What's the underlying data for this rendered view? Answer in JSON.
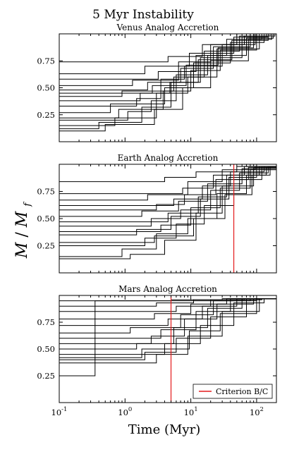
{
  "figure": {
    "title": "5 Myr Instability",
    "ylabel": "M / M_f",
    "xlabel": "Time (Myr)"
  },
  "chart_data": [
    {
      "type": "line",
      "title": "Venus Analog Accretion",
      "xscale": "log",
      "xlim": [
        0.1,
        200
      ],
      "ylim": [
        0.0,
        1.0
      ],
      "yticks": [
        "0.25",
        "0.50",
        "0.75"
      ],
      "series_style": "step",
      "series_color": "#000000",
      "series": [
        {
          "steps": [
            [
              0.1,
              0.12
            ],
            [
              0.4,
              0.18
            ],
            [
              1.8,
              0.32
            ],
            [
              5,
              0.55
            ],
            [
              14,
              0.78
            ],
            [
              60,
              0.97
            ],
            [
              150,
              1.0
            ]
          ]
        },
        {
          "steps": [
            [
              0.1,
              0.15
            ],
            [
              0.7,
              0.22
            ],
            [
              3,
              0.45
            ],
            [
              9,
              0.6
            ],
            [
              25,
              0.86
            ],
            [
              110,
              1.0
            ]
          ]
        },
        {
          "steps": [
            [
              0.1,
              0.2
            ],
            [
              1.1,
              0.28
            ],
            [
              2.5,
              0.38
            ],
            [
              6,
              0.62
            ],
            [
              18,
              0.8
            ],
            [
              70,
              0.96
            ],
            [
              180,
              1.0
            ]
          ]
        },
        {
          "steps": [
            [
              0.1,
              0.27
            ],
            [
              0.6,
              0.35
            ],
            [
              4,
              0.5
            ],
            [
              11,
              0.73
            ],
            [
              40,
              0.92
            ],
            [
              130,
              1.0
            ]
          ]
        },
        {
          "steps": [
            [
              0.1,
              0.33
            ],
            [
              1.5,
              0.4
            ],
            [
              3.5,
              0.58
            ],
            [
              8,
              0.7
            ],
            [
              30,
              0.9
            ],
            [
              95,
              1.0
            ]
          ]
        },
        {
          "steps": [
            [
              0.1,
              0.42
            ],
            [
              0.9,
              0.47
            ],
            [
              5.5,
              0.6
            ],
            [
              16,
              0.84
            ],
            [
              55,
              0.98
            ],
            [
              160,
              1.0
            ]
          ]
        },
        {
          "steps": [
            [
              0.1,
              0.48
            ],
            [
              2.2,
              0.55
            ],
            [
              7,
              0.68
            ],
            [
              22,
              0.88
            ],
            [
              80,
              1.0
            ]
          ]
        },
        {
          "steps": [
            [
              0.1,
              0.52
            ],
            [
              1.3,
              0.57
            ],
            [
              6.5,
              0.74
            ],
            [
              20,
              0.9
            ],
            [
              65,
              0.98
            ],
            [
              190,
              1.0
            ]
          ]
        },
        {
          "steps": [
            [
              0.1,
              0.58
            ],
            [
              3.2,
              0.65
            ],
            [
              12,
              0.8
            ],
            [
              35,
              0.95
            ],
            [
              120,
              1.0
            ]
          ]
        },
        {
          "steps": [
            [
              0.1,
              0.63
            ],
            [
              2,
              0.7
            ],
            [
              9.5,
              0.82
            ],
            [
              45,
              0.97
            ],
            [
              140,
              1.0
            ]
          ]
        },
        {
          "steps": [
            [
              0.1,
              0.74
            ],
            [
              4.5,
              0.79
            ],
            [
              15,
              0.9
            ],
            [
              50,
              1.0
            ]
          ]
        },
        {
          "steps": [
            [
              0.1,
              0.1
            ],
            [
              0.5,
              0.16
            ],
            [
              2.8,
              0.3
            ],
            [
              7.5,
              0.5
            ],
            [
              20,
              0.75
            ],
            [
              75,
              0.95
            ],
            [
              170,
              1.0
            ]
          ]
        },
        {
          "steps": [
            [
              0.1,
              0.22
            ],
            [
              0.8,
              0.3
            ],
            [
              3.8,
              0.47
            ],
            [
              10,
              0.66
            ],
            [
              28,
              0.85
            ],
            [
              100,
              1.0
            ]
          ]
        },
        {
          "steps": [
            [
              0.1,
              0.38
            ],
            [
              1.7,
              0.45
            ],
            [
              4.8,
              0.55
            ],
            [
              13,
              0.76
            ],
            [
              42,
              0.94
            ],
            [
              150,
              1.0
            ]
          ]
        },
        {
          "steps": [
            [
              0.1,
              0.45
            ],
            [
              2.6,
              0.52
            ],
            [
              8.5,
              0.71
            ],
            [
              26,
              0.87
            ],
            [
              90,
              1.0
            ]
          ]
        }
      ]
    },
    {
      "type": "line",
      "title": "Earth Analog Accretion",
      "xscale": "log",
      "xlim": [
        0.1,
        200
      ],
      "ylim": [
        0.0,
        1.0
      ],
      "yticks": [
        "0.25",
        "0.50",
        "0.75"
      ],
      "series_style": "step",
      "series_color": "#000000",
      "vline": {
        "x": 45,
        "color": "#e41a1c"
      },
      "series": [
        {
          "steps": [
            [
              0.1,
              0.13
            ],
            [
              1.2,
              0.17
            ],
            [
              4,
              0.3
            ],
            [
              12,
              0.55
            ],
            [
              30,
              0.8
            ],
            [
              90,
              0.97
            ]
          ]
        },
        {
          "steps": [
            [
              0.1,
              0.15
            ],
            [
              0.9,
              0.22
            ],
            [
              3,
              0.36
            ],
            [
              9,
              0.5
            ],
            [
              25,
              0.73
            ],
            [
              70,
              0.9
            ],
            [
              140,
              0.97
            ]
          ]
        },
        {
          "steps": [
            [
              0.1,
              0.25
            ],
            [
              2,
              0.32
            ],
            [
              6,
              0.45
            ],
            [
              16,
              0.62
            ],
            [
              45,
              0.86
            ],
            [
              120,
              0.98
            ]
          ]
        },
        {
          "steps": [
            [
              0.1,
              0.35
            ],
            [
              1.5,
              0.4
            ],
            [
              5,
              0.52
            ],
            [
              14,
              0.68
            ],
            [
              38,
              0.88
            ],
            [
              100,
              0.97
            ]
          ]
        },
        {
          "steps": [
            [
              0.1,
              0.38
            ],
            [
              3.5,
              0.44
            ],
            [
              10,
              0.6
            ],
            [
              28,
              0.78
            ],
            [
              80,
              0.95
            ]
          ]
        },
        {
          "steps": [
            [
              0.1,
              0.43
            ],
            [
              2.5,
              0.5
            ],
            [
              7,
              0.58
            ],
            [
              20,
              0.76
            ],
            [
              55,
              0.92
            ],
            [
              150,
              0.98
            ]
          ]
        },
        {
          "steps": [
            [
              0.1,
              0.47
            ],
            [
              4.5,
              0.55
            ],
            [
              13,
              0.7
            ],
            [
              35,
              0.9
            ],
            [
              110,
              0.98
            ]
          ]
        },
        {
          "steps": [
            [
              0.1,
              0.52
            ],
            [
              1.8,
              0.57
            ],
            [
              6.5,
              0.66
            ],
            [
              18,
              0.82
            ],
            [
              60,
              0.96
            ]
          ]
        },
        {
          "steps": [
            [
              0.1,
              0.58
            ],
            [
              3,
              0.63
            ],
            [
              8,
              0.72
            ],
            [
              24,
              0.86
            ],
            [
              75,
              0.97
            ]
          ]
        },
        {
          "steps": [
            [
              0.1,
              0.62
            ],
            [
              5.5,
              0.68
            ],
            [
              15,
              0.8
            ],
            [
              40,
              0.93
            ],
            [
              130,
              0.98
            ]
          ]
        },
        {
          "steps": [
            [
              0.1,
              0.67
            ],
            [
              2.2,
              0.72
            ],
            [
              9,
              0.84
            ],
            [
              30,
              0.95
            ],
            [
              95,
              0.98
            ]
          ]
        },
        {
          "steps": [
            [
              0.1,
              0.73
            ],
            [
              7.5,
              0.78
            ],
            [
              22,
              0.9
            ],
            [
              65,
              0.98
            ]
          ]
        },
        {
          "steps": [
            [
              0.1,
              0.84
            ],
            [
              4,
              0.88
            ],
            [
              12,
              0.93
            ],
            [
              50,
              0.98
            ]
          ]
        },
        {
          "steps": [
            [
              0.1,
              0.28
            ],
            [
              2.8,
              0.34
            ],
            [
              11,
              0.5
            ],
            [
              33,
              0.72
            ],
            [
              85,
              0.9
            ],
            [
              160,
              0.98
            ]
          ]
        }
      ]
    },
    {
      "type": "line",
      "title": "Mars Analog Accretion",
      "xscale": "log",
      "xlim": [
        0.1,
        200
      ],
      "ylim": [
        0.0,
        1.0
      ],
      "yticks": [
        "0.25",
        "0.50",
        "0.75"
      ],
      "series_style": "step",
      "series_color": "#000000",
      "vline": {
        "x": 5,
        "color": "#e41a1c"
      },
      "legend": {
        "label": "Criterion B/C",
        "color": "#e41a1c",
        "loc": "lower right"
      },
      "series": [
        {
          "steps": [
            [
              0.1,
              0.25
            ],
            [
              0.35,
              0.95
            ],
            [
              100,
              0.97
            ]
          ]
        },
        {
          "steps": [
            [
              0.1,
              0.37
            ],
            [
              3,
              0.45
            ],
            [
              9,
              0.62
            ],
            [
              30,
              0.85
            ],
            [
              110,
              0.97
            ]
          ]
        },
        {
          "steps": [
            [
              0.1,
              0.4
            ],
            [
              2,
              0.47
            ],
            [
              6,
              0.6
            ],
            [
              20,
              0.8
            ],
            [
              70,
              0.97
            ]
          ]
        },
        {
          "steps": [
            [
              0.1,
              0.45
            ],
            [
              4,
              0.55
            ],
            [
              14,
              0.72
            ],
            [
              45,
              0.93
            ],
            [
              130,
              0.97
            ]
          ]
        },
        {
          "steps": [
            [
              0.1,
              0.5
            ],
            [
              1.5,
              0.55
            ],
            [
              5.5,
              0.7
            ],
            [
              18,
              0.88
            ],
            [
              60,
              0.97
            ]
          ]
        },
        {
          "steps": [
            [
              0.1,
              0.55
            ],
            [
              2.5,
              0.62
            ],
            [
              8,
              0.78
            ],
            [
              25,
              0.92
            ],
            [
              90,
              0.97
            ]
          ]
        },
        {
          "steps": [
            [
              0.1,
              0.6
            ],
            [
              3.5,
              0.68
            ],
            [
              12,
              0.85
            ],
            [
              40,
              0.96
            ],
            [
              120,
              0.97
            ]
          ]
        },
        {
          "steps": [
            [
              0.1,
              0.65
            ],
            [
              1.2,
              0.7
            ],
            [
              7,
              0.82
            ],
            [
              22,
              0.95
            ],
            [
              80,
              0.97
            ]
          ]
        },
        {
          "steps": [
            [
              0.1,
              0.72
            ],
            [
              4.5,
              0.78
            ],
            [
              15,
              0.9
            ],
            [
              50,
              0.97
            ]
          ]
        },
        {
          "steps": [
            [
              0.1,
              0.78
            ],
            [
              2.8,
              0.83
            ],
            [
              10,
              0.92
            ],
            [
              35,
              0.97
            ]
          ]
        },
        {
          "steps": [
            [
              0.1,
              0.85
            ],
            [
              6,
              0.9
            ],
            [
              20,
              0.96
            ],
            [
              65,
              0.97
            ]
          ]
        },
        {
          "steps": [
            [
              0.1,
              0.9
            ],
            [
              3,
              0.93
            ],
            [
              11,
              0.96
            ],
            [
              40,
              0.97
            ]
          ]
        },
        {
          "steps": [
            [
              0.1,
              0.95
            ],
            [
              5,
              0.96
            ],
            [
              30,
              0.97
            ]
          ]
        },
        {
          "steps": [
            [
              0.1,
              0.42
            ],
            [
              1.8,
              0.5
            ],
            [
              9.5,
              0.67
            ],
            [
              28,
              0.83
            ],
            [
              100,
              0.97
            ]
          ]
        }
      ]
    }
  ],
  "xticks": [
    {
      "base": "10",
      "exp": "-1",
      "value": 0.1
    },
    {
      "base": "10",
      "exp": "0",
      "value": 1
    },
    {
      "base": "10",
      "exp": "1",
      "value": 10
    },
    {
      "base": "10",
      "exp": "2",
      "value": 100
    }
  ]
}
